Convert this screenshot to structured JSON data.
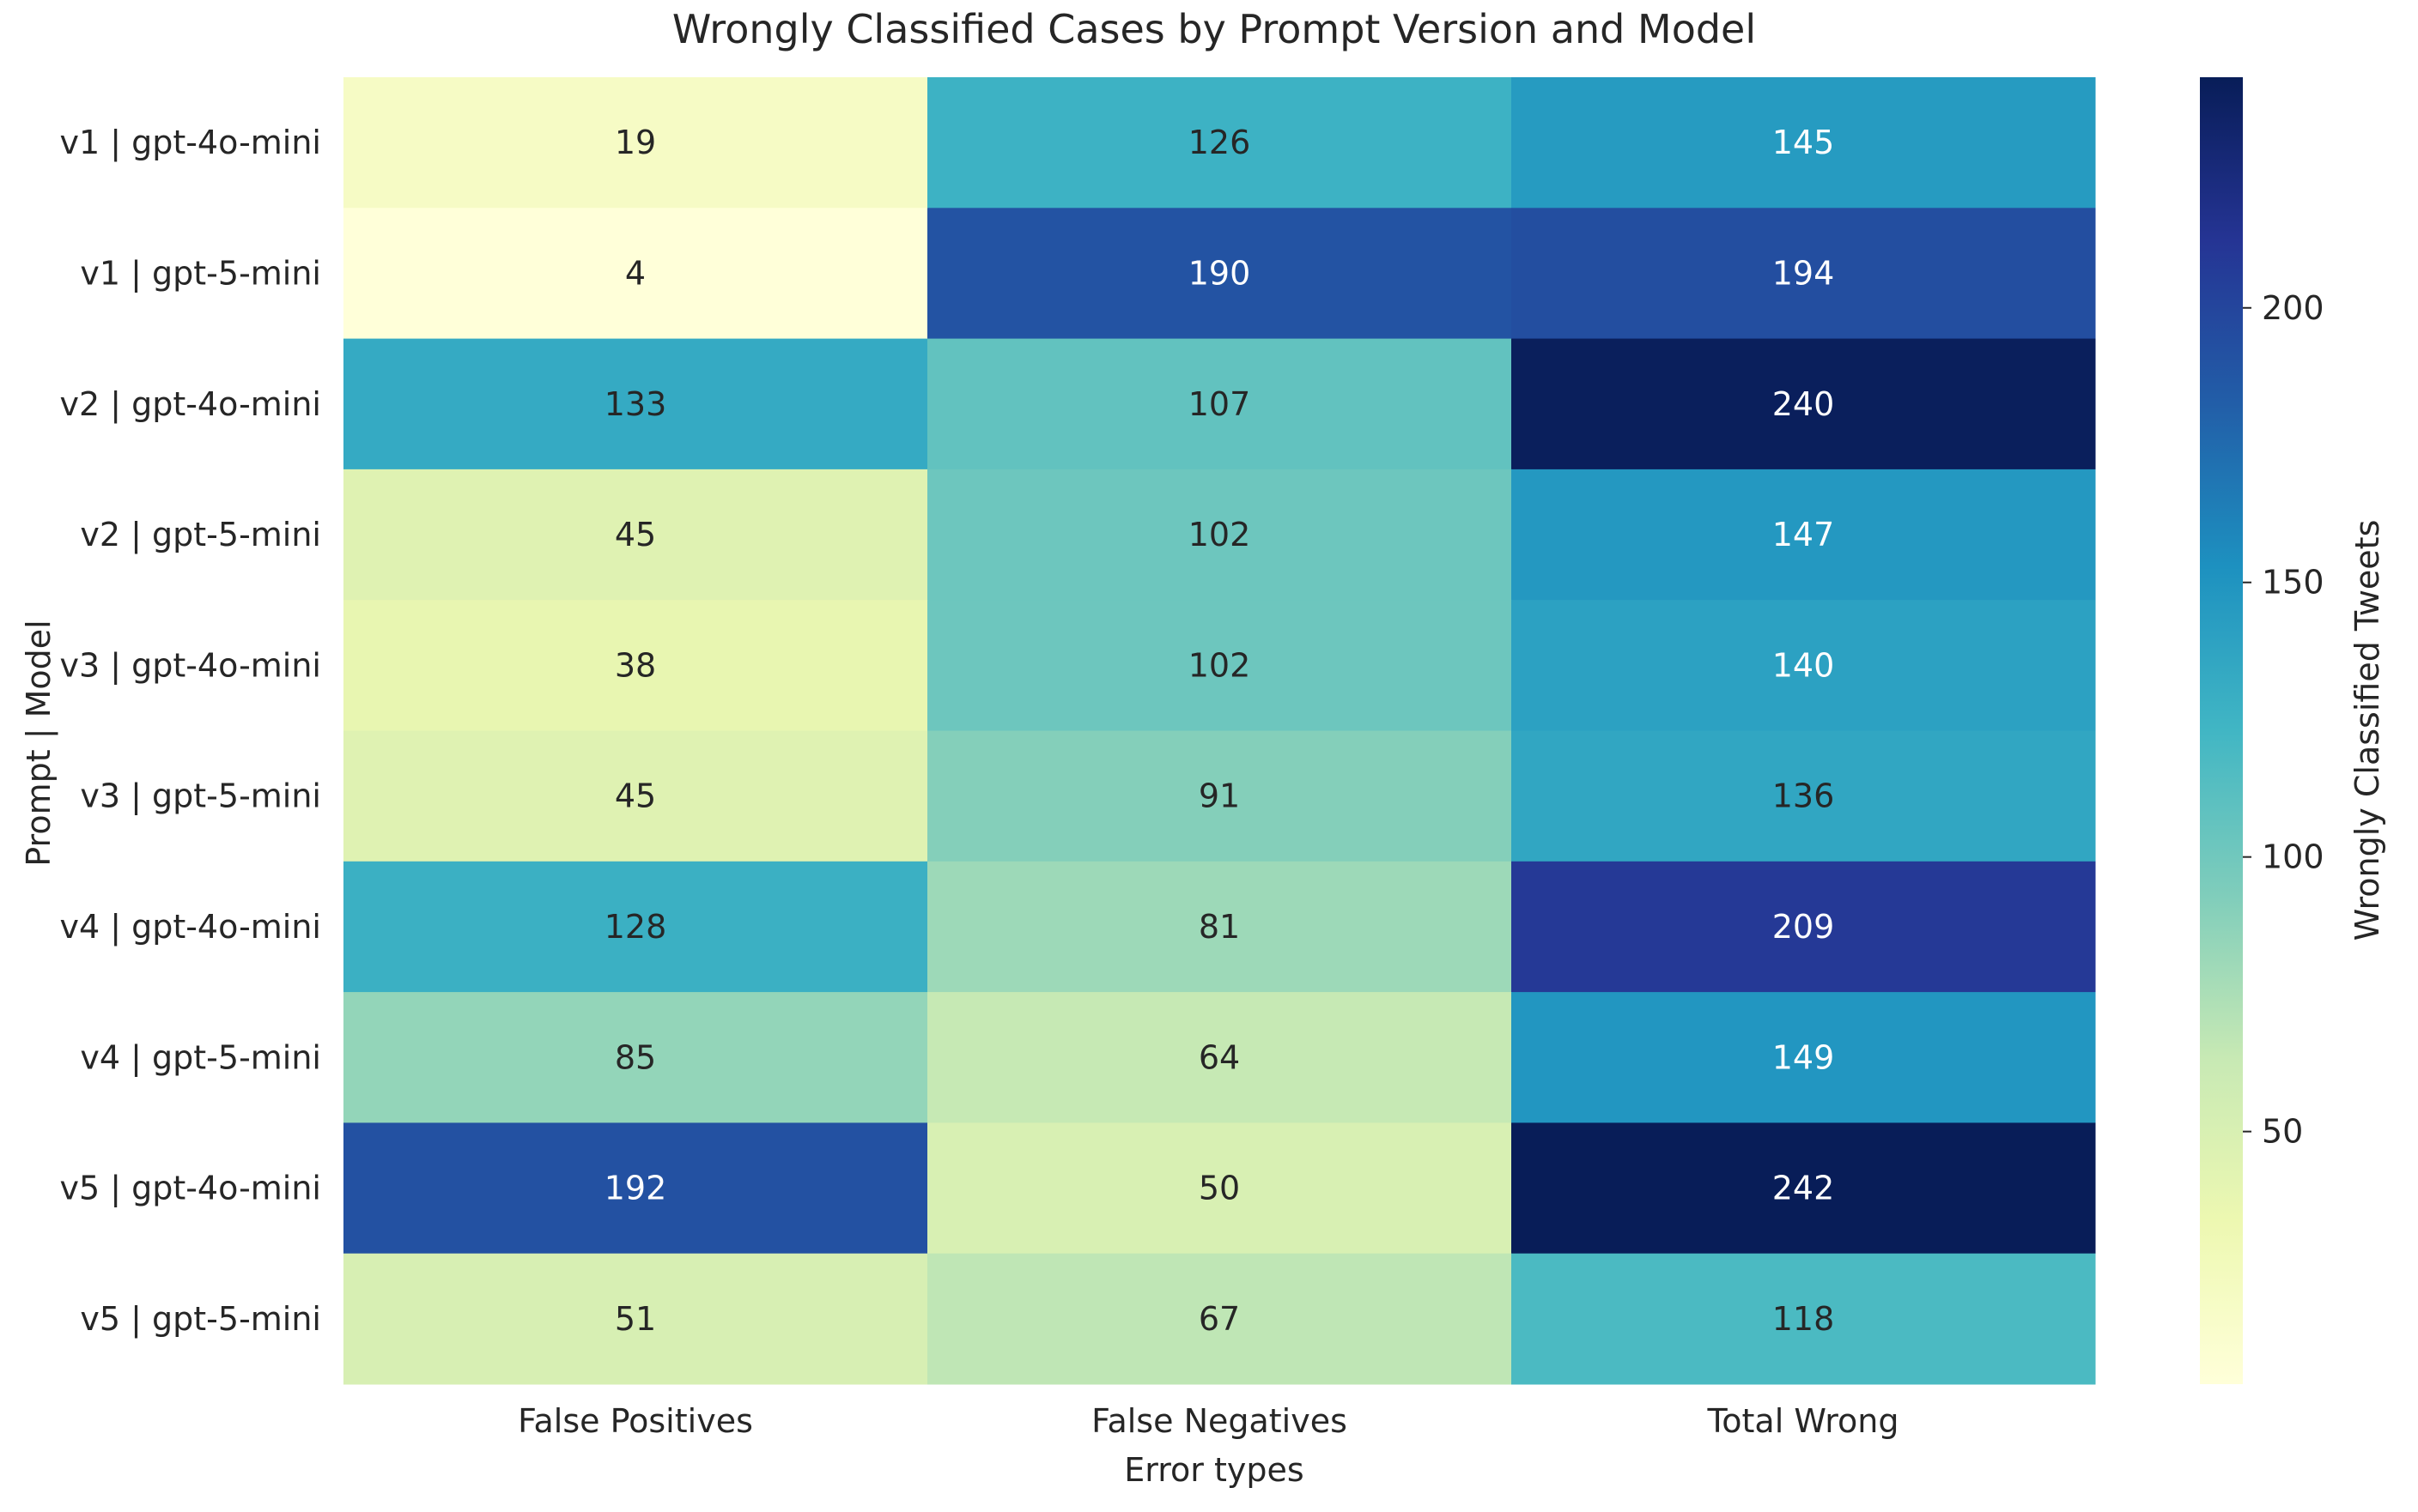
{
  "chart_data": {
    "type": "heatmap",
    "title": "Wrongly Classified Cases by Prompt Version and Model",
    "xlabel": "Error types",
    "ylabel": "Prompt | Model",
    "columns": [
      "False Positives",
      "False Negatives",
      "Total Wrong"
    ],
    "rows": [
      "v1 | gpt-4o-mini",
      "v1 | gpt-5-mini",
      "v2 | gpt-4o-mini",
      "v2 | gpt-5-mini",
      "v3 | gpt-4o-mini",
      "v3 | gpt-5-mini",
      "v4 | gpt-4o-mini",
      "v4 | gpt-5-mini",
      "v5 | gpt-4o-mini",
      "v5 | gpt-5-mini"
    ],
    "values": [
      [
        19,
        126,
        145
      ],
      [
        4,
        190,
        194
      ],
      [
        133,
        107,
        240
      ],
      [
        45,
        102,
        147
      ],
      [
        38,
        102,
        140
      ],
      [
        45,
        91,
        136
      ],
      [
        128,
        81,
        209
      ],
      [
        85,
        64,
        149
      ],
      [
        192,
        50,
        242
      ],
      [
        51,
        67,
        118
      ]
    ],
    "colorbar": {
      "label": "Wrongly Classified Tweets",
      "min": 4,
      "max": 242,
      "ticks": [
        50,
        100,
        150,
        200
      ],
      "colormap": "YlGnBu"
    },
    "grid": false
  }
}
